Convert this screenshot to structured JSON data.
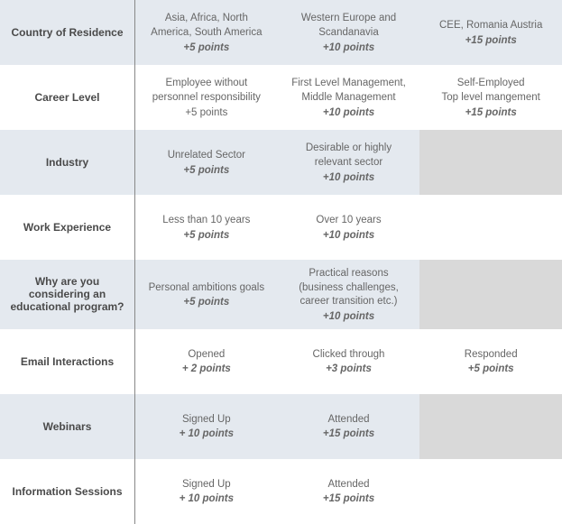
{
  "table": {
    "colors": {
      "shaded_row": "#e4e9ef",
      "plain_row": "#ffffff",
      "empty_shaded": "#d9d9d9",
      "divider": "#888888",
      "text": "#555555"
    },
    "rows": [
      {
        "header": "Country of Residence",
        "shaded": true,
        "cells": [
          {
            "desc": "Asia, Africa, North America, South America",
            "points": "+5 points"
          },
          {
            "desc": "Western Europe and Scandanavia",
            "points": "+10 points"
          },
          {
            "desc": "CEE, Romania Austria",
            "points": "+15 points"
          }
        ]
      },
      {
        "header": "Career Level",
        "shaded": false,
        "cells": [
          {
            "desc": "Employee without personnel responsibility",
            "points": "+5 points",
            "points_plain": true
          },
          {
            "desc": "First Level Management, Middle Management",
            "points": "+10 points"
          },
          {
            "desc": "Self-Employed\nTop level mangement",
            "points": "+15 points"
          }
        ]
      },
      {
        "header": "Industry",
        "shaded": true,
        "cells": [
          {
            "desc": "Unrelated Sector",
            "points": "+5 points"
          },
          {
            "desc": "Desirable or highly relevant sector",
            "points": "+10 points"
          },
          {
            "empty": true
          }
        ]
      },
      {
        "header": "Work Experience",
        "shaded": false,
        "cells": [
          {
            "desc": "Less than 10 years",
            "points": "+5 points"
          },
          {
            "desc": "Over 10 years",
            "points": "+10 points"
          },
          {
            "empty": true
          }
        ]
      },
      {
        "header": "Why are you considering an educational program?",
        "shaded": true,
        "cells": [
          {
            "desc": "Personal ambitions goals",
            "points": "+5 points"
          },
          {
            "desc": "Practical reasons (business challenges, career transition etc.)",
            "points": "+10 points"
          },
          {
            "empty": true
          }
        ]
      },
      {
        "header": "Email Interactions",
        "shaded": false,
        "cells": [
          {
            "desc": "Opened",
            "points": "+ 2 points"
          },
          {
            "desc": "Clicked through",
            "points": "+3 points"
          },
          {
            "desc": "Responded",
            "points": "+5 points"
          }
        ]
      },
      {
        "header": "Webinars",
        "shaded": true,
        "cells": [
          {
            "desc": "Signed Up",
            "points": "+ 10 points"
          },
          {
            "desc": "Attended",
            "points": "+15 points"
          },
          {
            "empty": true
          }
        ]
      },
      {
        "header": "Information Sessions",
        "shaded": false,
        "cells": [
          {
            "desc": "Signed Up",
            "points": "+ 10 points"
          },
          {
            "desc": "Attended",
            "points": "+15 points"
          },
          {
            "empty": true
          }
        ]
      }
    ]
  }
}
